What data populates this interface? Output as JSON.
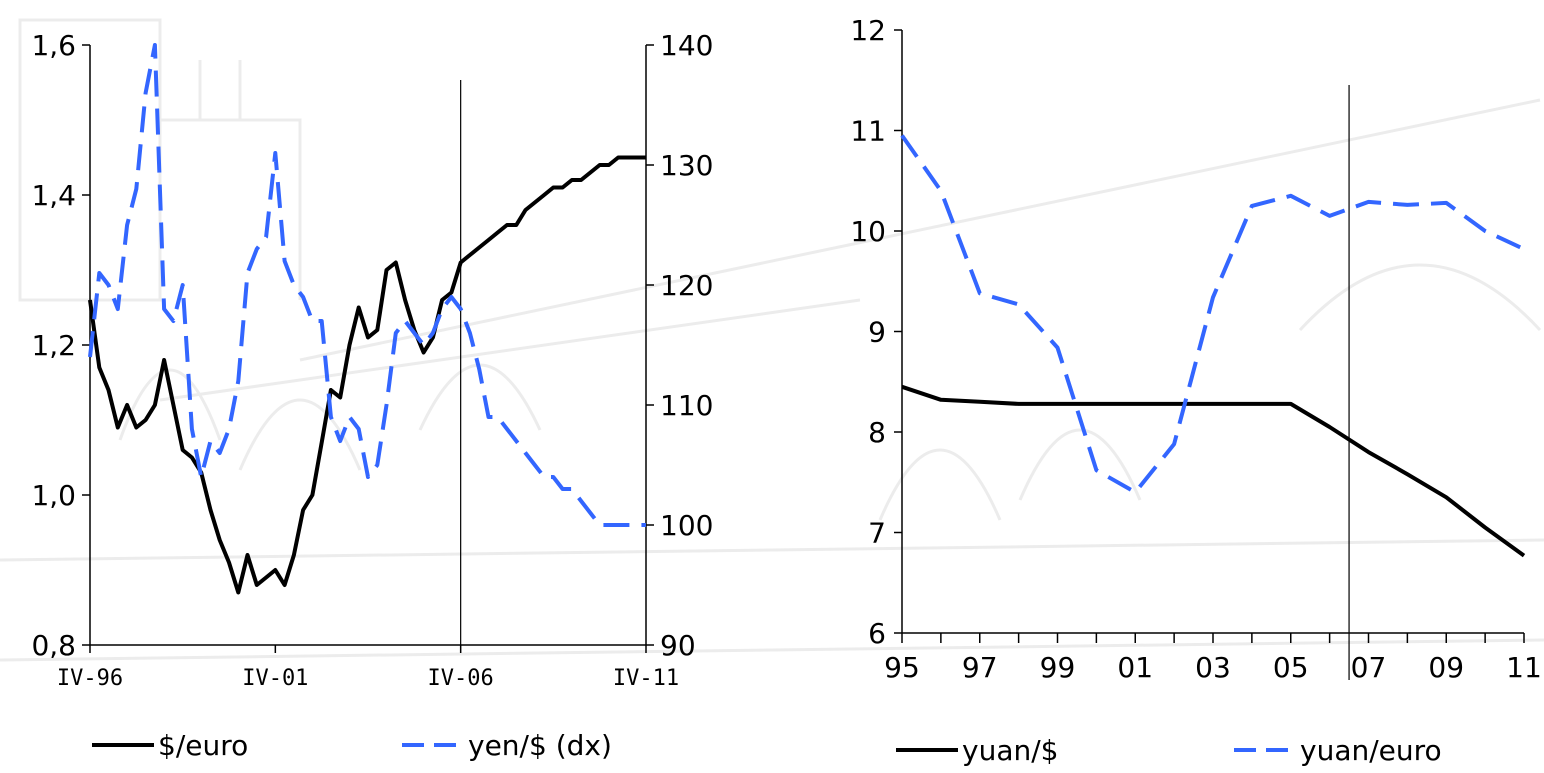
{
  "colors": {
    "black_series": "#000000",
    "blue_series": "#3366ff",
    "axis": "#000000"
  },
  "chart_data": [
    {
      "type": "line",
      "x_tick_labels": [
        "IV-96",
        "IV-01",
        "IV-06",
        "IV-11"
      ],
      "x_range": [
        1996.75,
        2011.75
      ],
      "forecast_divider_x": 2006.75,
      "y_left": {
        "ticks": [
          "0,8",
          "1,0",
          "1,2",
          "1,4",
          "1,6"
        ],
        "tick_values": [
          0.8,
          1.0,
          1.2,
          1.4,
          1.6
        ],
        "range": [
          0.8,
          1.6
        ]
      },
      "y_right": {
        "ticks": [
          "90",
          "100",
          "110",
          "120",
          "130",
          "140"
        ],
        "tick_values": [
          90,
          100,
          110,
          120,
          130,
          140
        ],
        "range": [
          90,
          140
        ]
      },
      "series": [
        {
          "name": "$/euro",
          "axis": "left",
          "style": "solid",
          "color": "#000000",
          "x": [
            1996.75,
            1997.0,
            1997.25,
            1997.5,
            1997.75,
            1998.0,
            1998.25,
            1998.5,
            1998.75,
            1999.0,
            1999.25,
            1999.5,
            1999.75,
            2000.0,
            2000.25,
            2000.5,
            2000.75,
            2001.0,
            2001.25,
            2001.5,
            2001.75,
            2002.0,
            2002.25,
            2002.5,
            2002.75,
            2003.0,
            2003.25,
            2003.5,
            2003.75,
            2004.0,
            2004.25,
            2004.5,
            2004.75,
            2005.0,
            2005.25,
            2005.5,
            2005.75,
            2006.0,
            2006.25,
            2006.5,
            2006.75,
            2007.0,
            2007.25,
            2007.5,
            2007.75,
            2008.0,
            2008.25,
            2008.5,
            2008.75,
            2009.0,
            2009.25,
            2009.5,
            2009.75,
            2010.0,
            2010.25,
            2010.5,
            2010.75,
            2011.0,
            2011.25,
            2011.5,
            2011.75
          ],
          "values": [
            1.26,
            1.17,
            1.14,
            1.09,
            1.12,
            1.09,
            1.1,
            1.12,
            1.18,
            1.12,
            1.06,
            1.05,
            1.03,
            0.98,
            0.94,
            0.91,
            0.87,
            0.92,
            0.88,
            0.89,
            0.9,
            0.88,
            0.92,
            0.98,
            1.0,
            1.07,
            1.14,
            1.13,
            1.2,
            1.25,
            1.21,
            1.22,
            1.3,
            1.31,
            1.26,
            1.22,
            1.19,
            1.21,
            1.26,
            1.27,
            1.31,
            1.32,
            1.33,
            1.34,
            1.35,
            1.36,
            1.36,
            1.38,
            1.39,
            1.4,
            1.41,
            1.41,
            1.42,
            1.42,
            1.43,
            1.44,
            1.44,
            1.45,
            1.45,
            1.45,
            1.45
          ]
        },
        {
          "name": "yen/$ (dx)",
          "axis": "right",
          "style": "dashed",
          "color": "#3366ff",
          "x": [
            1996.75,
            1997.0,
            1997.25,
            1997.5,
            1997.75,
            1998.0,
            1998.25,
            1998.5,
            1998.75,
            1999.0,
            1999.25,
            1999.5,
            1999.75,
            2000.0,
            2000.25,
            2000.5,
            2000.75,
            2001.0,
            2001.25,
            2001.5,
            2001.75,
            2002.0,
            2002.25,
            2002.5,
            2002.75,
            2003.0,
            2003.25,
            2003.5,
            2003.75,
            2004.0,
            2004.25,
            2004.5,
            2004.75,
            2005.0,
            2005.25,
            2005.5,
            2005.75,
            2006.0,
            2006.25,
            2006.5,
            2006.75,
            2007.0,
            2007.25,
            2007.5,
            2007.75,
            2008.0,
            2008.25,
            2008.5,
            2008.75,
            2009.0,
            2009.25,
            2009.5,
            2009.75,
            2010.0,
            2010.25,
            2010.5,
            2010.75,
            2011.0,
            2011.25,
            2011.5,
            2011.75
          ],
          "values": [
            114,
            121,
            120,
            118,
            125,
            128,
            136,
            140,
            118,
            117,
            120,
            108,
            104,
            107,
            106,
            108,
            112,
            121,
            123,
            124,
            131,
            122,
            120,
            119,
            117,
            117,
            109,
            107,
            109,
            108,
            104,
            105,
            110,
            116,
            117,
            116,
            115,
            116,
            118,
            119,
            118,
            116,
            113,
            109,
            109,
            108,
            107,
            106,
            105,
            104,
            104,
            103,
            103,
            102,
            101,
            100,
            100,
            100,
            100,
            100,
            100
          ]
        }
      ]
    },
    {
      "type": "line",
      "x_tick_labels": [
        "95",
        "97",
        "99",
        "01",
        "03",
        "05",
        "07",
        "09",
        "11"
      ],
      "x_range": [
        1995,
        2011
      ],
      "forecast_divider_x": 2006.5,
      "y_left": {
        "ticks": [
          "6",
          "7",
          "8",
          "9",
          "10",
          "11",
          "12"
        ],
        "tick_values": [
          6,
          7,
          8,
          9,
          10,
          11,
          12
        ],
        "range": [
          6,
          12
        ]
      },
      "series": [
        {
          "name": "yuan/$",
          "axis": "left",
          "style": "solid",
          "color": "#000000",
          "x": [
            1995,
            1996,
            1997,
            1998,
            1999,
            2000,
            2001,
            2002,
            2003,
            2004,
            2005,
            2006,
            2007,
            2008,
            2009,
            2010,
            2011
          ],
          "values": [
            8.45,
            8.32,
            8.3,
            8.28,
            8.28,
            8.28,
            8.28,
            8.28,
            8.28,
            8.28,
            8.28,
            8.05,
            7.8,
            7.58,
            7.35,
            7.05,
            6.77
          ]
        },
        {
          "name": "yuan/euro",
          "axis": "left",
          "style": "dashed",
          "color": "#3366ff",
          "x": [
            1995,
            1996,
            1997,
            1998,
            1999,
            2000,
            2001,
            2002,
            2003,
            2004,
            2005,
            2006,
            2007,
            2008,
            2009,
            2010,
            2011
          ],
          "values": [
            10.95,
            10.4,
            9.38,
            9.27,
            8.84,
            7.62,
            7.4,
            7.88,
            9.34,
            10.25,
            10.35,
            10.15,
            10.29,
            10.26,
            10.28,
            10.0,
            9.82
          ]
        }
      ]
    }
  ]
}
